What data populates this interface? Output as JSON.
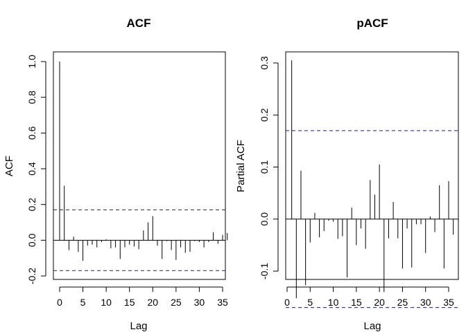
{
  "chart_data": [
    {
      "type": "bar",
      "title": "ACF",
      "xlabel": "Lag",
      "ylabel": "ACF",
      "xlim": [
        0,
        37
      ],
      "ylim": [
        -0.2,
        1.0
      ],
      "xticks": [
        0,
        5,
        10,
        15,
        20,
        25,
        30,
        35
      ],
      "yticks": [
        -0.2,
        0.0,
        0.2,
        0.4,
        0.6,
        0.8,
        1.0
      ],
      "ytick_labels": [
        "-0.2",
        "0.0",
        "0.2",
        "0.4",
        "0.6",
        "0.8",
        "1.0"
      ],
      "conf_limit": 0.17,
      "lags": [
        0,
        1,
        2,
        3,
        4,
        5,
        6,
        7,
        8,
        9,
        10,
        11,
        12,
        13,
        14,
        15,
        16,
        17,
        18,
        19,
        20,
        21,
        22,
        23,
        24,
        25,
        26,
        27,
        28,
        29,
        30,
        31,
        32,
        33,
        34,
        35,
        36
      ],
      "values": [
        1.0,
        0.305,
        -0.055,
        0.02,
        -0.065,
        -0.115,
        -0.03,
        -0.025,
        -0.04,
        -0.01,
        0.005,
        -0.045,
        -0.04,
        -0.105,
        -0.04,
        -0.025,
        -0.035,
        -0.05,
        0.055,
        0.1,
        0.135,
        -0.03,
        -0.105,
        -0.005,
        -0.055,
        -0.11,
        -0.04,
        -0.07,
        -0.065,
        -0.005,
        -0.01,
        -0.04,
        -0.01,
        0.045,
        -0.02,
        0.03,
        0.04
      ]
    },
    {
      "type": "bar",
      "title": "pACF",
      "xlabel": "Lag",
      "ylabel": "Partial ACF",
      "xlim": [
        0,
        37
      ],
      "ylim": [
        -0.185,
        0.31
      ],
      "xticks": [
        0,
        5,
        10,
        15,
        20,
        25,
        30,
        35
      ],
      "yticks": [
        -0.1,
        0.0,
        0.1,
        0.2,
        0.3
      ],
      "ytick_labels": [
        "-0.1",
        "0.0",
        "0.1",
        "0.2",
        "0.3"
      ],
      "conf_limit": 0.17,
      "lags": [
        1,
        2,
        3,
        4,
        5,
        6,
        7,
        8,
        9,
        10,
        11,
        12,
        13,
        14,
        15,
        16,
        17,
        18,
        19,
        20,
        21,
        22,
        23,
        24,
        25,
        26,
        27,
        28,
        29,
        30,
        31,
        32,
        33,
        34,
        35,
        36
      ],
      "values": [
        0.305,
        -0.152,
        0.093,
        -0.127,
        -0.045,
        0.012,
        -0.035,
        -0.023,
        -0.003,
        -0.005,
        -0.038,
        -0.033,
        -0.112,
        0.022,
        -0.05,
        -0.018,
        -0.057,
        0.075,
        0.047,
        0.105,
        -0.14,
        -0.037,
        0.033,
        -0.037,
        -0.095,
        -0.018,
        -0.093,
        -0.01,
        -0.01,
        -0.065,
        0.005,
        -0.025,
        0.065,
        -0.095,
        0.073,
        -0.03
      ]
    }
  ]
}
